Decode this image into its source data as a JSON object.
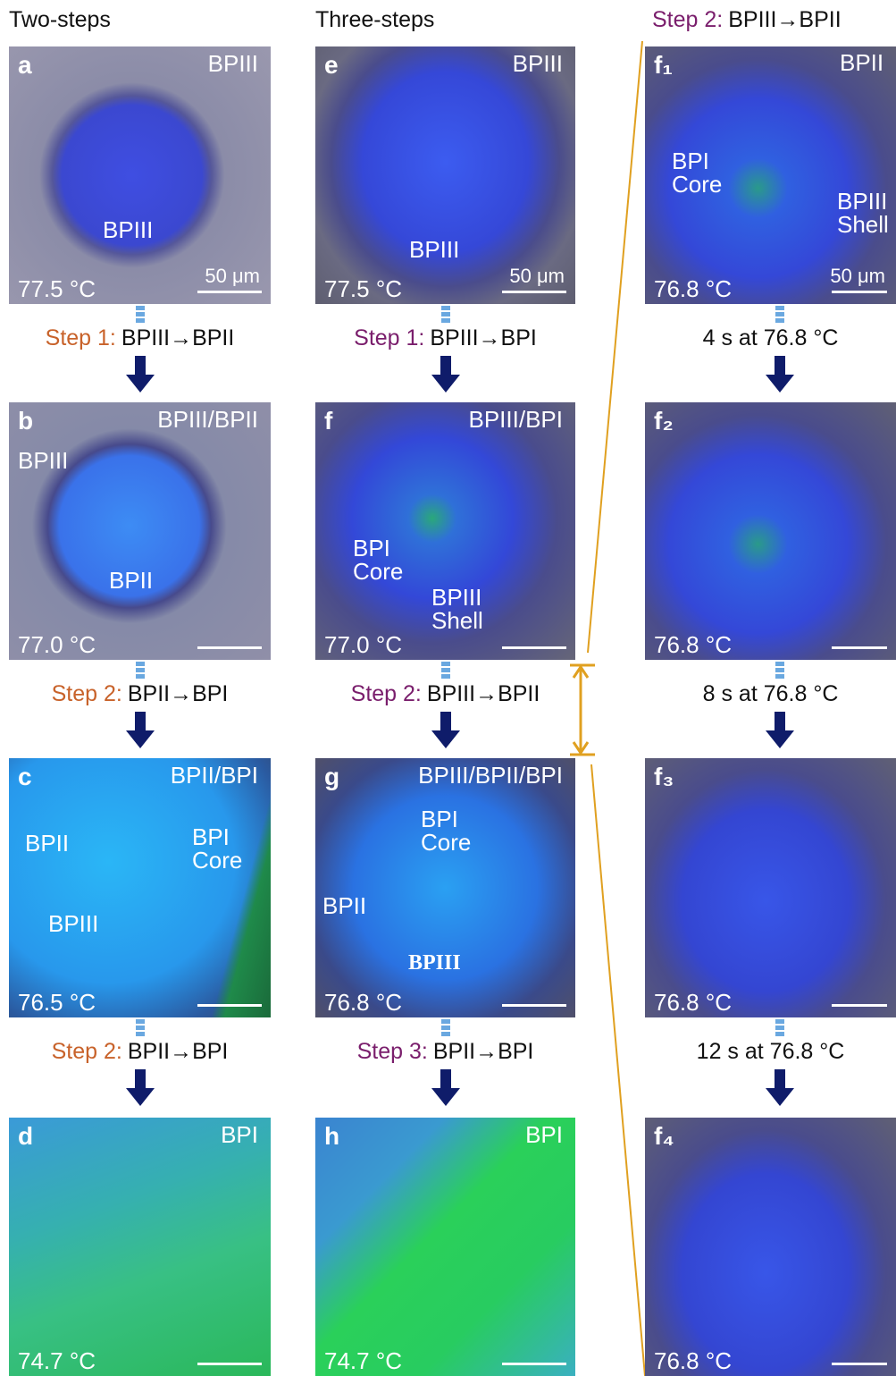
{
  "columns": [
    {
      "heading": "Two-steps",
      "panels": [
        {
          "letter": "a",
          "phase": "BPIII",
          "labels": [
            "BPIII"
          ],
          "temperature": "77.5 °C",
          "scale_bar": "50 μm"
        },
        {
          "letter": "b",
          "phase": "BPIII/BPII",
          "labels": [
            "BPIII",
            "BPII"
          ],
          "temperature": "77.0 °C"
        },
        {
          "letter": "c",
          "phase": "BPII/BPI",
          "labels": [
            "BPII",
            "BPIII",
            "BPI Core"
          ],
          "temperature": "76.5 °C"
        },
        {
          "letter": "d",
          "phase": "BPI",
          "labels": [],
          "temperature": "74.7 °C"
        }
      ],
      "steps": [
        {
          "label": "Step 1:",
          "transition": "BPIII→BPII"
        },
        {
          "label": "Step 2:",
          "transition": "BPII→BPI"
        },
        {
          "label": "Step 2:",
          "transition": "BPII→BPI"
        }
      ]
    },
    {
      "heading": "Three-steps",
      "panels": [
        {
          "letter": "e",
          "phase": "BPIII",
          "labels": [
            "BPIII"
          ],
          "temperature": "77.5 °C",
          "scale_bar": "50 μm"
        },
        {
          "letter": "f",
          "phase": "BPIII/BPI",
          "labels": [
            "BPI Core",
            "BPIII Shell"
          ],
          "temperature": "77.0 °C"
        },
        {
          "letter": "g",
          "phase": "BPIII/BPII/BPI",
          "labels": [
            "BPI Core",
            "BPII",
            "BPIII"
          ],
          "temperature": "76.8 °C"
        },
        {
          "letter": "h",
          "phase": "BPI",
          "labels": [],
          "temperature": "74.7 °C"
        }
      ],
      "steps": [
        {
          "label": "Step 1:",
          "transition": "BPIII→BPI"
        },
        {
          "label": "Step 2:",
          "transition": "BPIII→BPII"
        },
        {
          "label": "Step 3:",
          "transition": "BPII→BPI"
        }
      ]
    },
    {
      "heading": {
        "label": "Step 2:",
        "transition": "BPIII→BPII"
      },
      "panels": [
        {
          "letter": "f₁",
          "labels": [
            "BPII",
            "BPI Core",
            "BPIII Shell"
          ],
          "temperature": "76.8 °C",
          "scale_bar": "50 μm"
        },
        {
          "letter": "f₂",
          "labels": [],
          "temperature": "76.8 °C"
        },
        {
          "letter": "f₃",
          "labels": [],
          "temperature": "76.8 °C"
        },
        {
          "letter": "f₄",
          "labels": [],
          "temperature": "76.8 °C"
        }
      ],
      "steps": [
        "4 s at 76.8 °C",
        "8 s at 76.8 °C",
        "12 s at 76.8 °C"
      ]
    }
  ]
}
